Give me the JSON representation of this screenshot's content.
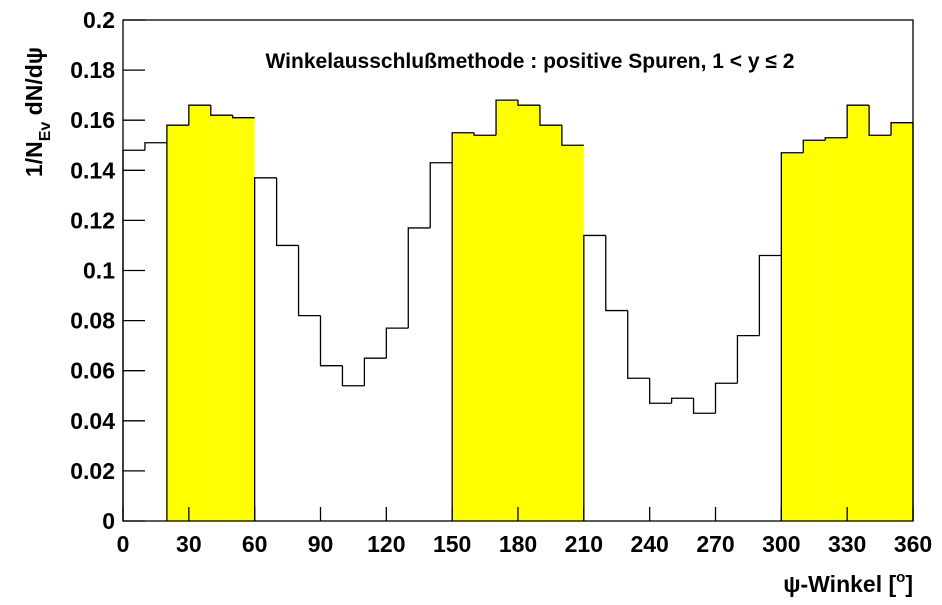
{
  "chart_data": {
    "type": "histogram",
    "title": "Winkelausschlußmethode : positive Spuren, 1 < y ≤ 2",
    "ylabel": {
      "main": "1/N",
      "sub": "Ev",
      "rest": " dN/dψ"
    },
    "xlabel": {
      "main": "ψ-Winkel [",
      "sup": "o",
      "rest": "]"
    },
    "bins": [
      0,
      10,
      20,
      30,
      40,
      50,
      60,
      70,
      80,
      90,
      100,
      110,
      120,
      130,
      140,
      150,
      160,
      170,
      180,
      190,
      200,
      210,
      220,
      230,
      240,
      250,
      260,
      270,
      280,
      290,
      300,
      310,
      320,
      330,
      340,
      350,
      360
    ],
    "values": [
      0.148,
      0.151,
      0.158,
      0.166,
      0.162,
      0.161,
      0.137,
      0.11,
      0.082,
      0.062,
      0.054,
      0.065,
      0.077,
      0.117,
      0.143,
      0.155,
      0.154,
      0.168,
      0.166,
      0.158,
      0.15,
      0.114,
      0.084,
      0.057,
      0.047,
      0.049,
      0.043,
      0.055,
      0.074,
      0.106,
      0.147,
      0.152,
      0.153,
      0.166,
      0.154,
      0.159
    ],
    "highlight_ranges": [
      [
        20,
        60
      ],
      [
        150,
        210
      ],
      [
        300,
        360
      ]
    ],
    "highlight_color": "#ffff00",
    "color": "#000000",
    "xlim": [
      0,
      360
    ],
    "xticks": [
      0,
      30,
      60,
      90,
      120,
      150,
      180,
      210,
      240,
      270,
      300,
      330,
      360
    ],
    "ylim": [
      0,
      0.2
    ],
    "yticks": [
      0,
      0.02,
      0.04,
      0.06,
      0.08,
      0.1,
      0.12,
      0.14,
      0.16,
      0.18,
      0.2
    ]
  }
}
